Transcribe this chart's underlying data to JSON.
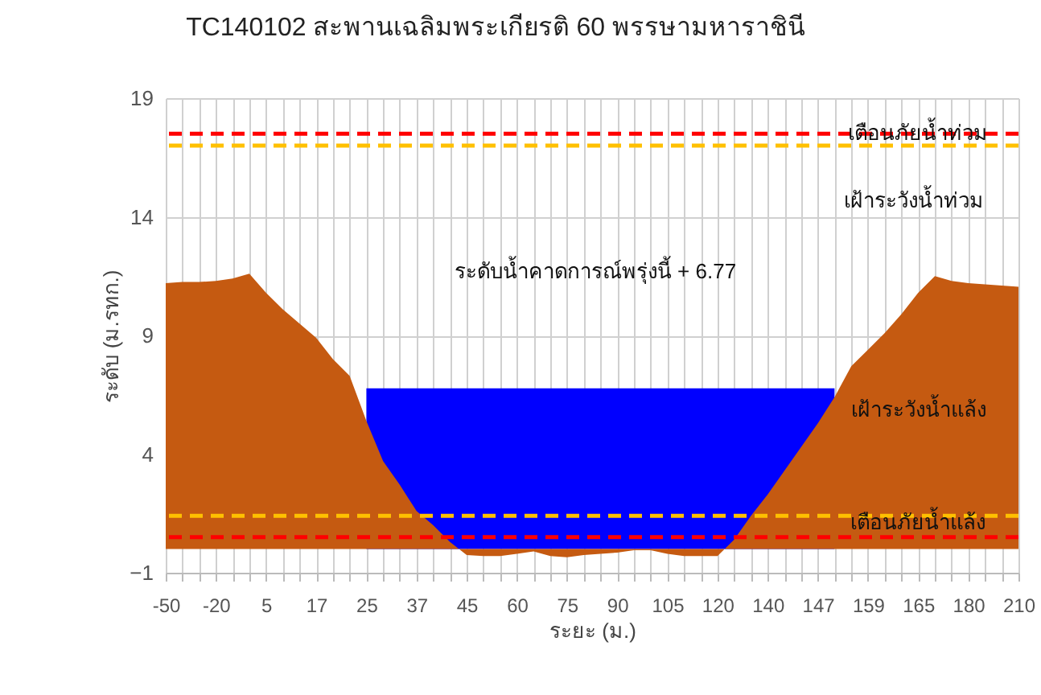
{
  "chart_data": {
    "type": "area",
    "title": "TC140102 สะพานเฉลิมพระเกียรติ 60 พรรษามหาราชินี",
    "xlabel": "ระยะ (ม.)",
    "ylabel": "ระดับ (ม.รทก.)",
    "categories": [
      "-50",
      null,
      null,
      "-20",
      null,
      null,
      "5",
      null,
      null,
      "17",
      null,
      null,
      "25",
      null,
      null,
      "37",
      null,
      null,
      "45",
      null,
      null,
      "60",
      null,
      null,
      "75",
      null,
      null,
      "90",
      null,
      null,
      "105",
      null,
      null,
      "120",
      null,
      null,
      "140",
      null,
      null,
      "147",
      null,
      null,
      "159",
      null,
      null,
      "165",
      null,
      null,
      "180",
      null,
      null,
      "210"
    ],
    "series": [
      {
        "color": "#0000ff",
        "values": [
          null,
          null,
          null,
          null,
          null,
          null,
          null,
          null,
          null,
          null,
          null,
          null,
          6.77,
          6.77,
          6.77,
          6.77,
          6.77,
          6.77,
          6.77,
          6.77,
          6.77,
          6.77,
          6.77,
          6.77,
          6.77,
          6.77,
          6.77,
          6.77,
          6.77,
          6.77,
          6.77,
          6.77,
          6.77,
          6.77,
          6.77,
          6.77,
          6.77,
          6.77,
          6.77,
          6.77,
          6.77,
          null,
          null,
          null,
          null,
          null,
          null,
          null,
          null,
          null,
          null,
          null
        ]
      },
      {
        "color": "#c55a11",
        "values": [
          11.2,
          11.25,
          11.25,
          11.3,
          11.4,
          11.6,
          10.8,
          10.1,
          9.5,
          8.9,
          8.0,
          7.3,
          5.4,
          3.7,
          2.7,
          1.6,
          1.0,
          0.3,
          -0.25,
          -0.3,
          -0.3,
          -0.2,
          -0.1,
          -0.3,
          -0.35,
          -0.25,
          -0.2,
          -0.15,
          -0.05,
          -0.05,
          -0.2,
          -0.3,
          -0.3,
          -0.3,
          0.4,
          1.4,
          2.3,
          3.3,
          4.3,
          5.3,
          6.4,
          7.7,
          8.4,
          9.1,
          9.9,
          10.8,
          11.5,
          11.3,
          11.2,
          11.15,
          11.1,
          11.05
        ]
      }
    ],
    "ylim": [
      -1,
      19
    ],
    "yticks": [
      -1,
      4,
      9,
      14,
      19
    ],
    "grid": true,
    "ref_lines": [
      {
        "axis": "y",
        "value": 17.5,
        "color": "#ff0000",
        "line_style": "dashed"
      },
      {
        "axis": "y",
        "value": 17.0,
        "color": "#ffc000",
        "line_style": "dashed"
      },
      {
        "axis": "y",
        "value": 1.4,
        "color": "#ffc000",
        "line_style": "dashed"
      },
      {
        "axis": "y",
        "value": 0.5,
        "color": "#ff0000",
        "line_style": "dashed"
      }
    ],
    "annotations": [
      {
        "text": "เตือนภัยน้ำท่วม",
        "x": "165",
        "y": 17.5
      },
      "เฝ้าระวังน้ำท่วม",
      "ระดับน้ำคาดการณ์พรุ่งนี้ + 6.77",
      "เฝ้าระวังน้ำแล้ง",
      {
        "text": "เตือนภัยน้ำแล้ง",
        "x": "165",
        "y": 1.1
      }
    ]
  }
}
